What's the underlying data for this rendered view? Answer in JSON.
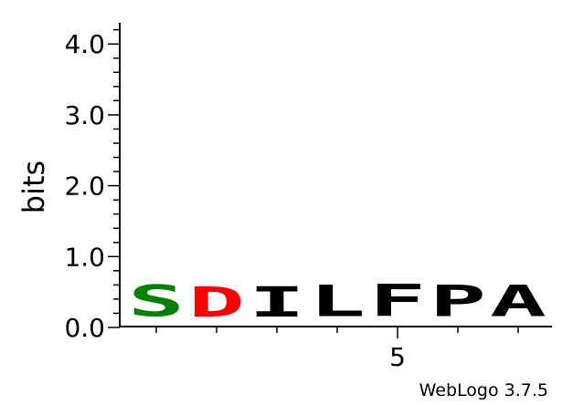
{
  "chart_data": {
    "type": "sequence-logo",
    "ylabel": "bits",
    "ylim": [
      0,
      4.3
    ],
    "y_ticks": [
      "0.0",
      "1.0",
      "2.0",
      "3.0",
      "4.0"
    ],
    "x_tick_label": "5",
    "positions": [
      {
        "index": 1,
        "letter": "S",
        "bits": 0.71,
        "color": "#008000"
      },
      {
        "index": 2,
        "letter": "D",
        "bits": 0.69,
        "color": "#ff0000"
      },
      {
        "index": 3,
        "letter": "I",
        "bits": 0.69,
        "color": "#000000"
      },
      {
        "index": 4,
        "letter": "L",
        "bits": 0.71,
        "color": "#000000"
      },
      {
        "index": 5,
        "letter": "F",
        "bits": 0.73,
        "color": "#000000"
      },
      {
        "index": 6,
        "letter": "P",
        "bits": 0.71,
        "color": "#000000"
      },
      {
        "index": 7,
        "letter": "A",
        "bits": 0.71,
        "color": "#000000"
      }
    ]
  },
  "credit": "WebLogo 3.7.5"
}
